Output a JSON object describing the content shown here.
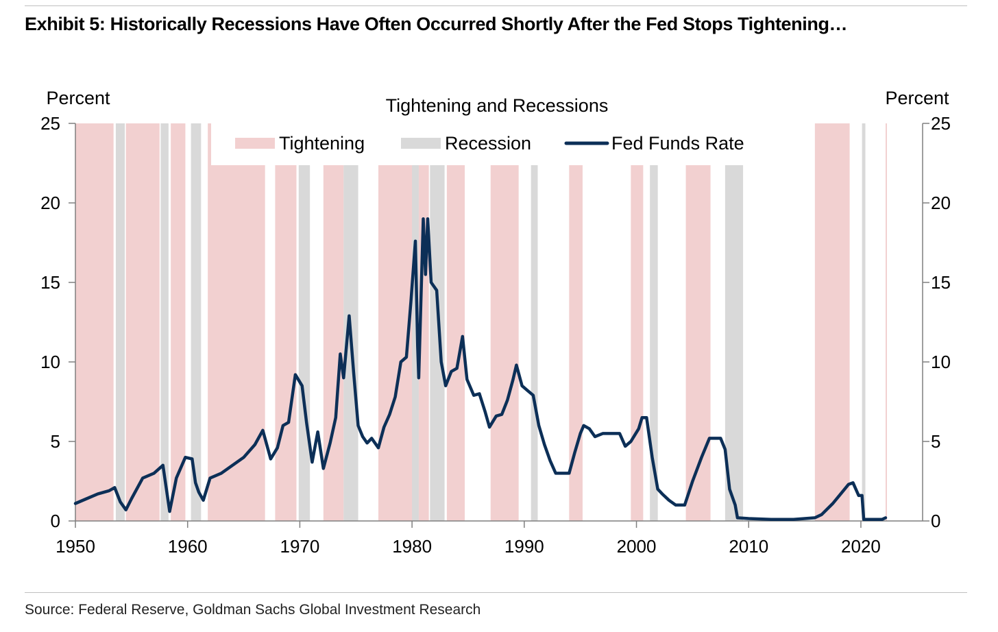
{
  "header": {
    "title": "Exhibit 5: Historically Recessions Have Often Occurred Shortly After the Fed Stops Tightening…"
  },
  "footer": {
    "source": "Source: Federal Reserve, Goldman Sachs Global Investment Research"
  },
  "colors": {
    "tightening": "#f2d0d0",
    "recession": "#d9d9d9",
    "line": "#0c2f57",
    "axis": "#7f7f7f"
  },
  "chart_data": {
    "type": "line",
    "title": "Tightening and Recessions",
    "ylabel_left": "Percent",
    "ylabel_right": "Percent",
    "xlim": [
      1950,
      2025.5
    ],
    "ylim": [
      0,
      25
    ],
    "x_ticks": [
      1950,
      1960,
      1970,
      1980,
      1990,
      2000,
      2010,
      2020
    ],
    "y_ticks": [
      0,
      5,
      10,
      15,
      20,
      25
    ],
    "legend": {
      "placement": "top-center",
      "entries": [
        {
          "label": "Tightening",
          "kind": "band",
          "color": "#f2d0d0"
        },
        {
          "label": "Recession",
          "kind": "band",
          "color": "#d9d9d9"
        },
        {
          "label": "Fed Funds Rate",
          "kind": "line",
          "color": "#0c2f57"
        }
      ]
    },
    "tightening_periods": [
      [
        1950.0,
        1953.4
      ],
      [
        1954.5,
        1957.5
      ],
      [
        1958.5,
        1959.8
      ],
      [
        1961.8,
        1966.9
      ],
      [
        1967.8,
        1969.7
      ],
      [
        1972.1,
        1973.9
      ],
      [
        1977.0,
        1980.2
      ],
      [
        1980.6,
        1981.5
      ],
      [
        1983.1,
        1984.7
      ],
      [
        1987.0,
        1989.5
      ],
      [
        1994.0,
        1995.2
      ],
      [
        1999.5,
        2000.6
      ],
      [
        2004.4,
        2006.6
      ],
      [
        2015.9,
        2019.0
      ],
      [
        2022.2,
        2022.3
      ]
    ],
    "recession_periods": [
      [
        1953.6,
        1954.4
      ],
      [
        1957.6,
        1958.3
      ],
      [
        1960.3,
        1961.2
      ],
      [
        1969.9,
        1970.9
      ],
      [
        1973.9,
        1975.2
      ],
      [
        1980.0,
        1980.6
      ],
      [
        1981.6,
        1982.9
      ],
      [
        1990.6,
        1991.2
      ],
      [
        2001.2,
        2001.9
      ],
      [
        2007.9,
        2009.5
      ],
      [
        2020.1,
        2020.4
      ]
    ],
    "series": [
      {
        "name": "Fed Funds Rate",
        "points": [
          [
            1950.0,
            1.1
          ],
          [
            1951.0,
            1.4
          ],
          [
            1952.0,
            1.7
          ],
          [
            1953.0,
            1.9
          ],
          [
            1953.5,
            2.1
          ],
          [
            1954.0,
            1.2
          ],
          [
            1954.5,
            0.7
          ],
          [
            1955.0,
            1.4
          ],
          [
            1956.0,
            2.7
          ],
          [
            1957.0,
            3.0
          ],
          [
            1957.8,
            3.5
          ],
          [
            1958.4,
            0.6
          ],
          [
            1959.0,
            2.7
          ],
          [
            1959.8,
            4.0
          ],
          [
            1960.4,
            3.9
          ],
          [
            1960.7,
            2.4
          ],
          [
            1961.0,
            1.8
          ],
          [
            1961.4,
            1.3
          ],
          [
            1962.0,
            2.7
          ],
          [
            1963.0,
            3.0
          ],
          [
            1964.0,
            3.5
          ],
          [
            1965.0,
            4.0
          ],
          [
            1966.0,
            4.8
          ],
          [
            1966.7,
            5.7
          ],
          [
            1967.4,
            3.9
          ],
          [
            1968.0,
            4.6
          ],
          [
            1968.5,
            6.0
          ],
          [
            1969.0,
            6.2
          ],
          [
            1969.6,
            9.2
          ],
          [
            1970.2,
            8.5
          ],
          [
            1970.6,
            6.2
          ],
          [
            1971.1,
            3.7
          ],
          [
            1971.6,
            5.6
          ],
          [
            1972.1,
            3.3
          ],
          [
            1972.7,
            4.9
          ],
          [
            1973.2,
            6.5
          ],
          [
            1973.6,
            10.5
          ],
          [
            1973.9,
            9.0
          ],
          [
            1974.4,
            12.9
          ],
          [
            1974.8,
            9.3
          ],
          [
            1975.2,
            6.0
          ],
          [
            1975.6,
            5.3
          ],
          [
            1976.0,
            4.9
          ],
          [
            1976.4,
            5.2
          ],
          [
            1977.0,
            4.6
          ],
          [
            1977.5,
            5.9
          ],
          [
            1978.0,
            6.7
          ],
          [
            1978.5,
            7.8
          ],
          [
            1979.0,
            10.0
          ],
          [
            1979.5,
            10.3
          ],
          [
            1979.9,
            13.8
          ],
          [
            1980.3,
            17.6
          ],
          [
            1980.5,
            11.0
          ],
          [
            1980.6,
            9.0
          ],
          [
            1981.0,
            19.0
          ],
          [
            1981.2,
            15.5
          ],
          [
            1981.4,
            19.0
          ],
          [
            1981.7,
            15.0
          ],
          [
            1982.2,
            14.5
          ],
          [
            1982.6,
            10.0
          ],
          [
            1983.0,
            8.5
          ],
          [
            1983.5,
            9.4
          ],
          [
            1984.0,
            9.6
          ],
          [
            1984.5,
            11.6
          ],
          [
            1984.9,
            8.9
          ],
          [
            1985.5,
            7.9
          ],
          [
            1986.0,
            8.0
          ],
          [
            1986.5,
            6.9
          ],
          [
            1986.9,
            5.9
          ],
          [
            1987.5,
            6.6
          ],
          [
            1988.0,
            6.7
          ],
          [
            1988.5,
            7.6
          ],
          [
            1989.0,
            8.9
          ],
          [
            1989.3,
            9.8
          ],
          [
            1989.8,
            8.5
          ],
          [
            1990.3,
            8.2
          ],
          [
            1990.8,
            7.9
          ],
          [
            1991.3,
            6.0
          ],
          [
            1991.8,
            4.8
          ],
          [
            1992.3,
            3.8
          ],
          [
            1992.8,
            3.0
          ],
          [
            1993.5,
            3.0
          ],
          [
            1994.0,
            3.0
          ],
          [
            1994.5,
            4.3
          ],
          [
            1995.0,
            5.5
          ],
          [
            1995.3,
            6.0
          ],
          [
            1995.8,
            5.8
          ],
          [
            1996.3,
            5.3
          ],
          [
            1997.0,
            5.5
          ],
          [
            1998.0,
            5.5
          ],
          [
            1998.5,
            5.5
          ],
          [
            1999.0,
            4.7
          ],
          [
            1999.5,
            5.0
          ],
          [
            2000.2,
            5.8
          ],
          [
            2000.5,
            6.5
          ],
          [
            2000.9,
            6.5
          ],
          [
            2001.4,
            4.0
          ],
          [
            2001.9,
            2.0
          ],
          [
            2002.3,
            1.7
          ],
          [
            2002.9,
            1.3
          ],
          [
            2003.5,
            1.0
          ],
          [
            2004.3,
            1.0
          ],
          [
            2005.0,
            2.5
          ],
          [
            2005.8,
            4.0
          ],
          [
            2006.5,
            5.2
          ],
          [
            2007.5,
            5.2
          ],
          [
            2007.9,
            4.5
          ],
          [
            2008.3,
            2.0
          ],
          [
            2008.8,
            1.0
          ],
          [
            2009.0,
            0.2
          ],
          [
            2010.0,
            0.15
          ],
          [
            2012.0,
            0.1
          ],
          [
            2014.0,
            0.1
          ],
          [
            2015.9,
            0.2
          ],
          [
            2016.5,
            0.4
          ],
          [
            2017.5,
            1.1
          ],
          [
            2018.2,
            1.7
          ],
          [
            2018.9,
            2.3
          ],
          [
            2019.3,
            2.4
          ],
          [
            2019.8,
            1.6
          ],
          [
            2020.1,
            1.6
          ],
          [
            2020.25,
            0.1
          ],
          [
            2021.0,
            0.1
          ],
          [
            2021.9,
            0.1
          ],
          [
            2022.2,
            0.2
          ]
        ]
      }
    ]
  }
}
